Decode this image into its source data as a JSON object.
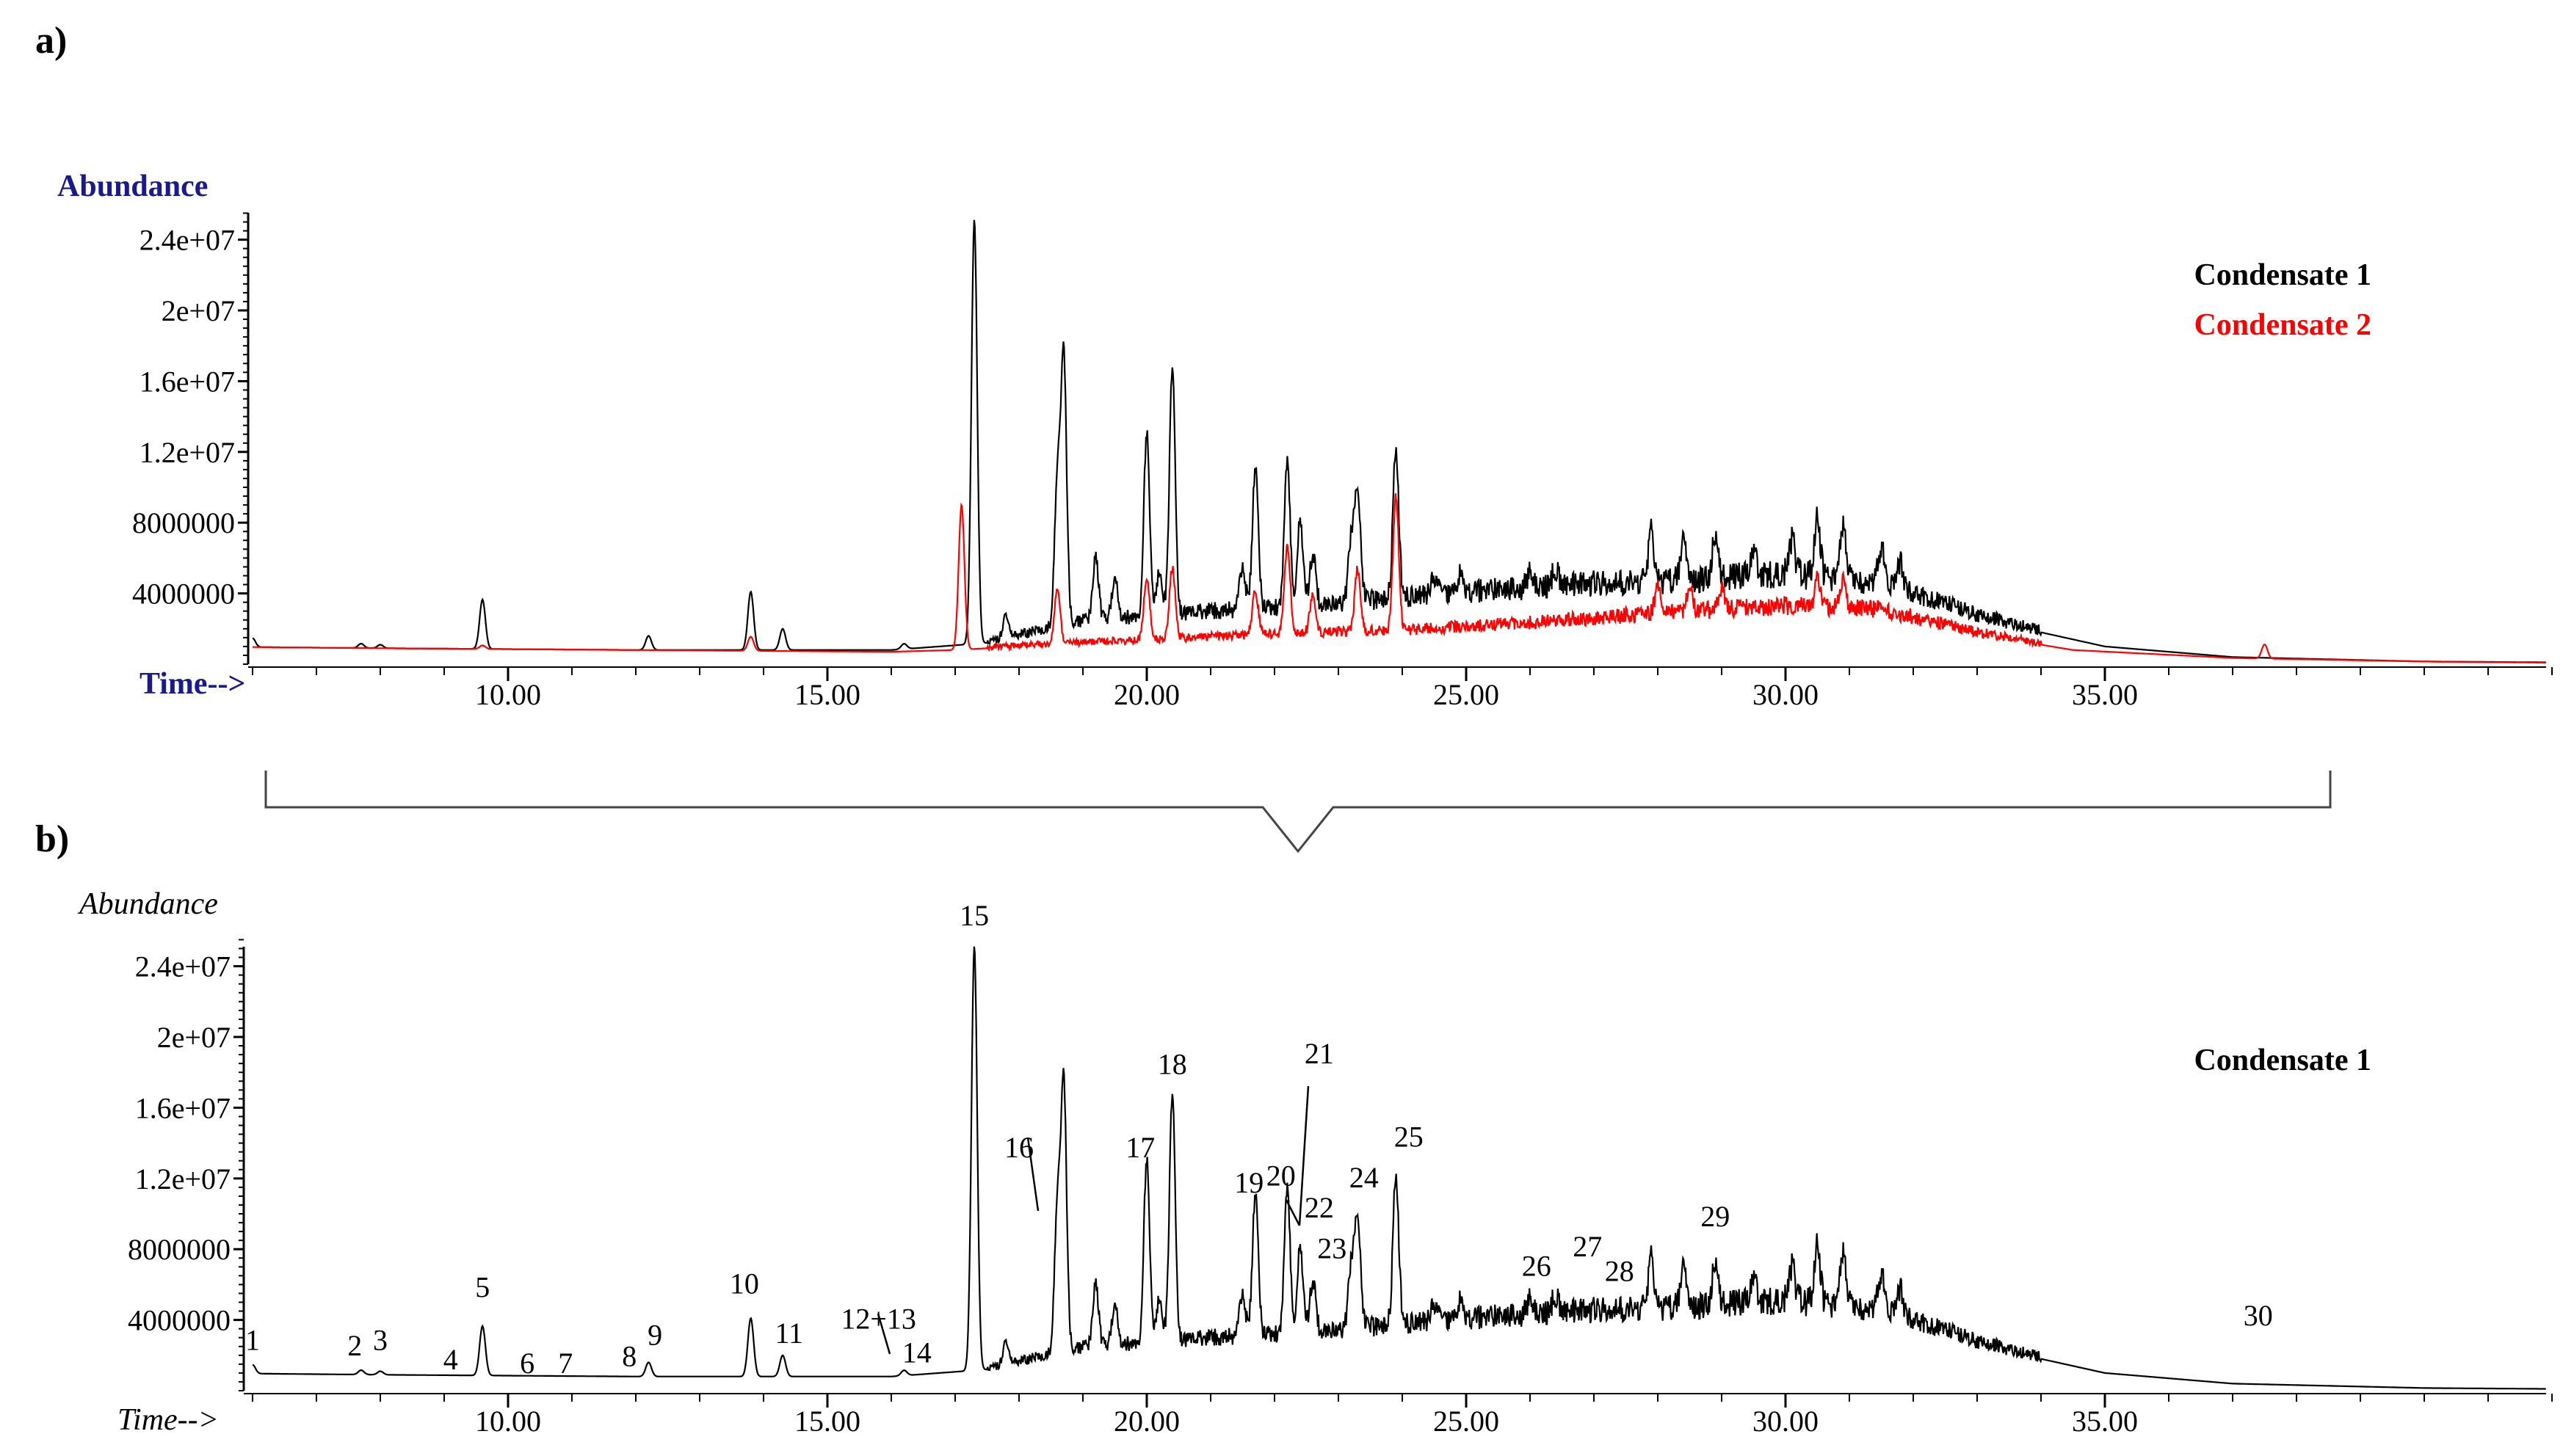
{
  "panel_a_label": "a)",
  "panel_b_label": "b)",
  "colors": {
    "condensate_1": "#000000",
    "condensate_2": "#ff0000",
    "axis_title_a": "#1a1a8c"
  },
  "chart_data": [
    {
      "type": "line",
      "ylabel": "Abundance",
      "xlabel": "Time-->",
      "xlim": [
        5.0,
        42.0
      ],
      "ylim": [
        0,
        26000000
      ],
      "x_ticks": [
        10.0,
        15.0,
        20.0,
        25.0,
        30.0,
        35.0
      ],
      "x_tick_labels": [
        "10.00",
        "15.00",
        "20.00",
        "25.00",
        "30.00",
        "35.00"
      ],
      "y_ticks": [
        4000000,
        8000000,
        12000000,
        16000000,
        20000000,
        24000000
      ],
      "y_tick_labels": [
        "4000000",
        "8000000",
        "1.2e+07",
        "1.6e+07",
        "2e+07",
        "2.4e+07"
      ],
      "legend_position": "top-right",
      "series": [
        {
          "name": "Condensate 1",
          "color": "#000000",
          "baseline": [
            [
              5.0,
              1000000
            ],
            [
              8,
              900000
            ],
            [
              12,
              800000
            ],
            [
              16,
              800000
            ],
            [
              17.5,
              1200000
            ],
            [
              19,
              2300000
            ],
            [
              21,
              2800000
            ],
            [
              23,
              3200000
            ],
            [
              25,
              3800000
            ],
            [
              26.5,
              4200000
            ],
            [
              28,
              4400000
            ],
            [
              30,
              4800000
            ],
            [
              31.5,
              4300000
            ],
            [
              33,
              2600000
            ],
            [
              35,
              1000000
            ],
            [
              37,
              400000
            ],
            [
              40,
              150000
            ],
            [
              42,
              100000
            ]
          ],
          "peaks": [
            [
              6.0,
              500000
            ],
            [
              7.7,
              250000
            ],
            [
              8.0,
              200000
            ],
            [
              9.6,
              2800000
            ],
            [
              12.2,
              800000
            ],
            [
              13.8,
              3300000
            ],
            [
              14.3,
              1200000
            ],
            [
              16.2,
              300000
            ],
            [
              17.3,
              24000000
            ],
            [
              17.8,
              1300000
            ],
            [
              18.6,
              8000000
            ],
            [
              18.7,
              15000000
            ],
            [
              19.2,
              3500000
            ],
            [
              19.5,
              2200000
            ],
            [
              20.0,
              10500000
            ],
            [
              20.2,
              2500000
            ],
            [
              20.4,
              14000000
            ],
            [
              21.5,
              2500000
            ],
            [
              21.7,
              8000000
            ],
            [
              22.2,
              8000000
            ],
            [
              22.4,
              5000000
            ],
            [
              22.6,
              3000000
            ],
            [
              23.2,
              3500000
            ],
            [
              23.3,
              6500000
            ],
            [
              23.9,
              8500000
            ],
            [
              24.5,
              1000000
            ],
            [
              24.9,
              1000000
            ],
            [
              26.0,
              800000
            ],
            [
              26.4,
              1000000
            ],
            [
              27.9,
              2800000
            ],
            [
              28.4,
              2300000
            ],
            [
              28.9,
              2400000
            ],
            [
              29.5,
              1500000
            ],
            [
              30.1,
              2000000
            ],
            [
              30.5,
              3300000
            ],
            [
              30.9,
              3200000
            ],
            [
              31.5,
              2000000
            ],
            [
              31.8,
              1500000
            ]
          ]
        },
        {
          "name": "Condensate 2",
          "color": "#ff0000",
          "baseline": [
            [
              5.0,
              1000000
            ],
            [
              8,
              900000
            ],
            [
              12,
              800000
            ],
            [
              16,
              700000
            ],
            [
              17,
              800000
            ],
            [
              18,
              1000000
            ],
            [
              20,
              1300000
            ],
            [
              22,
              1600000
            ],
            [
              24,
              1800000
            ],
            [
              26,
              2200000
            ],
            [
              28,
              2700000
            ],
            [
              30,
              3100000
            ],
            [
              31.5,
              2900000
            ],
            [
              33,
              1700000
            ],
            [
              34.5,
              800000
            ],
            [
              37,
              350000
            ],
            [
              40,
              150000
            ],
            [
              42,
              80000
            ]
          ],
          "peaks": [
            [
              9.6,
              200000
            ],
            [
              13.8,
              800000
            ],
            [
              17.1,
              8200000
            ],
            [
              18.6,
              3000000
            ],
            [
              20.0,
              3500000
            ],
            [
              20.4,
              4000000
            ],
            [
              21.7,
              2500000
            ],
            [
              22.2,
              5000000
            ],
            [
              22.6,
              2200000
            ],
            [
              23.3,
              3500000
            ],
            [
              23.9,
              7500000
            ],
            [
              28.0,
              1500000
            ],
            [
              28.5,
              1200000
            ],
            [
              29.0,
              1200000
            ],
            [
              30.5,
              1600000
            ],
            [
              30.9,
              1500000
            ],
            [
              37.5,
              800000
            ]
          ]
        }
      ]
    },
    {
      "type": "line",
      "ylabel": "Abundance",
      "xlabel": "Time-->",
      "xlim": [
        5.0,
        42.0
      ],
      "ylim": [
        0,
        26000000
      ],
      "x_ticks": [
        10.0,
        15.0,
        20.0,
        25.0,
        30.0,
        35.0
      ],
      "x_tick_labels": [
        "10.00",
        "15.00",
        "20.00",
        "25.00",
        "30.00",
        "35.00"
      ],
      "y_ticks": [
        4000000,
        8000000,
        12000000,
        16000000,
        20000000,
        24000000
      ],
      "y_tick_labels": [
        "4000000",
        "8000000",
        "1.2e+07",
        "1.6e+07",
        "2e+07",
        "2.4e+07"
      ],
      "legend_position": "top-right",
      "series": [
        {
          "name": "Condensate 1",
          "color": "#000000",
          "baseline": [
            [
              5.0,
              1000000
            ],
            [
              8,
              900000
            ],
            [
              12,
              800000
            ],
            [
              16,
              800000
            ],
            [
              17.5,
              1200000
            ],
            [
              19,
              2300000
            ],
            [
              21,
              2800000
            ],
            [
              23,
              3200000
            ],
            [
              25,
              3800000
            ],
            [
              26.5,
              4200000
            ],
            [
              28,
              4400000
            ],
            [
              30,
              4800000
            ],
            [
              31.5,
              4300000
            ],
            [
              33,
              2600000
            ],
            [
              35,
              1000000
            ],
            [
              37,
              400000
            ],
            [
              40,
              150000
            ],
            [
              42,
              100000
            ]
          ],
          "peaks": [
            [
              6.0,
              500000
            ],
            [
              7.7,
              250000
            ],
            [
              8.0,
              200000
            ],
            [
              9.6,
              2800000
            ],
            [
              12.2,
              800000
            ],
            [
              13.8,
              3300000
            ],
            [
              14.3,
              1200000
            ],
            [
              16.2,
              300000
            ],
            [
              17.3,
              24000000
            ],
            [
              17.8,
              1300000
            ],
            [
              18.6,
              8000000
            ],
            [
              18.7,
              15000000
            ],
            [
              19.2,
              3500000
            ],
            [
              19.5,
              2200000
            ],
            [
              20.0,
              10500000
            ],
            [
              20.2,
              2500000
            ],
            [
              20.4,
              14000000
            ],
            [
              21.5,
              2500000
            ],
            [
              21.7,
              8000000
            ],
            [
              22.2,
              8000000
            ],
            [
              22.4,
              5000000
            ],
            [
              22.6,
              3000000
            ],
            [
              23.2,
              3500000
            ],
            [
              23.3,
              6500000
            ],
            [
              23.9,
              8500000
            ],
            [
              24.5,
              1000000
            ],
            [
              24.9,
              1000000
            ],
            [
              26.0,
              800000
            ],
            [
              26.4,
              1000000
            ],
            [
              27.9,
              2800000
            ],
            [
              28.4,
              2300000
            ],
            [
              28.9,
              2400000
            ],
            [
              29.5,
              1500000
            ],
            [
              30.1,
              2000000
            ],
            [
              30.5,
              3300000
            ],
            [
              30.9,
              3200000
            ],
            [
              31.5,
              2000000
            ],
            [
              31.8,
              1500000
            ]
          ]
        }
      ],
      "peak_labels": [
        {
          "label": "1",
          "x": 6.0,
          "y": 2300000
        },
        {
          "label": "2",
          "x": 7.6,
          "y": 2000000
        },
        {
          "label": "3",
          "x": 8.0,
          "y": 2300000
        },
        {
          "label": "4",
          "x": 9.1,
          "y": 1200000
        },
        {
          "label": "5",
          "x": 9.6,
          "y": 5300000
        },
        {
          "label": "6",
          "x": 10.3,
          "y": 1000000
        },
        {
          "label": "7",
          "x": 10.9,
          "y": 1000000
        },
        {
          "label": "8",
          "x": 11.9,
          "y": 1400000
        },
        {
          "label": "9",
          "x": 12.3,
          "y": 2600000
        },
        {
          "label": "10",
          "x": 13.7,
          "y": 5500000
        },
        {
          "label": "11",
          "x": 14.4,
          "y": 2700000
        },
        {
          "label": "12+13",
          "x": 15.8,
          "y": 3500000
        },
        {
          "label": "14",
          "x": 16.4,
          "y": 1600000
        },
        {
          "label": "15",
          "x": 17.3,
          "y": 26300000
        },
        {
          "label": "16",
          "x": 18.0,
          "y": 13200000
        },
        {
          "label": "17",
          "x": 19.9,
          "y": 13200000
        },
        {
          "label": "18",
          "x": 20.4,
          "y": 17900000
        },
        {
          "label": "19",
          "x": 21.6,
          "y": 11200000
        },
        {
          "label": "20",
          "x": 22.1,
          "y": 11600000
        },
        {
          "label": "21",
          "x": 22.7,
          "y": 18500000
        },
        {
          "label": "22",
          "x": 22.7,
          "y": 9800000
        },
        {
          "label": "23",
          "x": 22.9,
          "y": 7500000
        },
        {
          "label": "24",
          "x": 23.4,
          "y": 11500000
        },
        {
          "label": "25",
          "x": 24.1,
          "y": 13800000
        },
        {
          "label": "26",
          "x": 26.1,
          "y": 6500000
        },
        {
          "label": "27",
          "x": 26.9,
          "y": 7600000
        },
        {
          "label": "28",
          "x": 27.4,
          "y": 6200000
        },
        {
          "label": "29",
          "x": 28.9,
          "y": 9300000
        },
        {
          "label": "30",
          "x": 37.4,
          "y": 3700000
        }
      ],
      "annotation_arrows": [
        {
          "label": "12+13",
          "from_x": 15.8,
          "to_x": 16.1
        },
        {
          "label": "16",
          "from_x": 18.1,
          "to_x": 18.4
        },
        {
          "label": "21",
          "from_x": 22.7,
          "to_x": 22.3
        },
        {
          "label": "20",
          "from_x": 22.3,
          "to_x": 22.4
        }
      ]
    }
  ]
}
